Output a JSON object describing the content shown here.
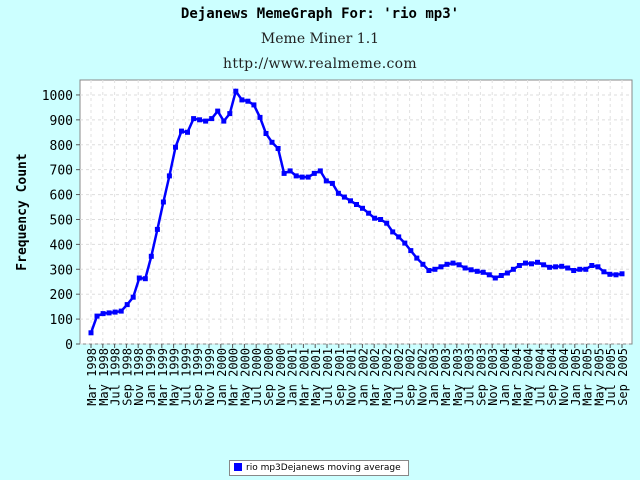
{
  "header": {
    "title": "Dejanews MemeGraph For: 'rio mp3'",
    "subtitle": "Meme Miner 1.1",
    "url": "http://www.realmeme.com"
  },
  "legend": {
    "label": "rio mp3Dejanews moving average",
    "color": "#0000ff"
  },
  "chart_data": {
    "type": "line",
    "title": "Dejanews MemeGraph For: 'rio mp3'",
    "ylabel": "Frequency Count",
    "xlabel": "",
    "ylim": [
      0,
      1060
    ],
    "yticks": [
      0,
      100,
      200,
      300,
      400,
      500,
      600,
      700,
      800,
      900,
      1000
    ],
    "grid": true,
    "legend_position": "bottom-center",
    "x_tick_labels": [
      "Mar 1998",
      "May 1998",
      "Jul 1998",
      "Sep 1998",
      "Nov 1998",
      "Jan 1999",
      "Mar 1999",
      "May 1999",
      "Jul 1999",
      "Sep 1999",
      "Nov 1999",
      "Jan 2000",
      "Mar 2000",
      "May 2000",
      "Jul 2000",
      "Sep 2000",
      "Nov 2000",
      "Jan 2001",
      "Mar 2001",
      "May 2001",
      "Jul 2001",
      "Sep 2001",
      "Nov 2001",
      "Jan 2002",
      "Mar 2002",
      "May 2002",
      "Jul 2002",
      "Sep 2002",
      "Nov 2002",
      "Jan 2003",
      "Mar 2003",
      "May 2003",
      "Jul 2003",
      "Sep 2003",
      "Nov 2003",
      "Jan 2004",
      "Mar 2004",
      "May 2004",
      "Jul 2004",
      "Sep 2004",
      "Nov 2004",
      "Jan 2005",
      "Mar 2005",
      "May 2005",
      "Jul 2005",
      "Sep 2005"
    ],
    "series": [
      {
        "name": "rio mp3Dejanews moving average",
        "color": "#0000ff",
        "values": [
          45,
          112,
          122,
          125,
          128,
          132,
          158,
          188,
          265,
          262,
          352,
          460,
          570,
          675,
          790,
          855,
          850,
          905,
          900,
          895,
          905,
          935,
          895,
          925,
          1015,
          980,
          975,
          960,
          910,
          845,
          810,
          785,
          685,
          695,
          675,
          670,
          670,
          685,
          695,
          655,
          645,
          605,
          590,
          575,
          560,
          545,
          525,
          505,
          500,
          485,
          450,
          430,
          405,
          375,
          345,
          320,
          295,
          300,
          310,
          320,
          325,
          318,
          305,
          298,
          292,
          288,
          278,
          265,
          275,
          285,
          300,
          315,
          325,
          322,
          328,
          318,
          308,
          310,
          312,
          305,
          295,
          300,
          300,
          315,
          310,
          290,
          280,
          278,
          282
        ]
      }
    ]
  }
}
